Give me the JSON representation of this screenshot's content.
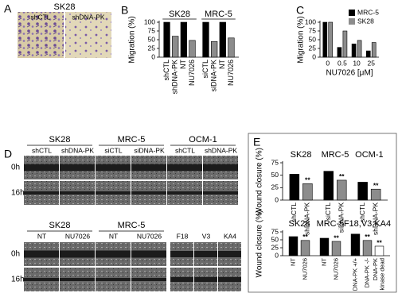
{
  "figure": {
    "A": {
      "letter": "A",
      "title": "SK28",
      "labels": [
        "shCTL",
        "shDNA-PK"
      ]
    },
    "D": {
      "letter": "D",
      "rows": [
        "0h",
        "16h"
      ],
      "top": {
        "groups": [
          {
            "label": "SK28",
            "conditions": [
              "shCTL",
              "shDNA-PK"
            ]
          },
          {
            "label": "MRC-5",
            "conditions": [
              "siCTL",
              "siDNA-PK"
            ]
          },
          {
            "label": "OCM-1",
            "conditions": [
              "shCTL",
              "shDNA-PK"
            ]
          }
        ]
      },
      "bottom": {
        "groups": [
          {
            "label": "SK28",
            "conditions": [
              "NT",
              "NU7026"
            ]
          },
          {
            "label": "MRC-5",
            "conditions": [
              "NT",
              "NU7026"
            ]
          }
        ],
        "lines": [
          "F18",
          "V3",
          "KA4"
        ]
      }
    }
  },
  "chart_data": [
    {
      "type": "bar",
      "panel": "B",
      "ylabel": "Migration (%)",
      "ylim": [
        0,
        100
      ],
      "yticks": [
        0,
        25,
        50,
        75,
        100
      ],
      "groups": [
        {
          "label": "SK28",
          "categories": [
            "shCTL",
            "shDNA-PK",
            "NT",
            "NU7026"
          ],
          "values": [
            100,
            60,
            100,
            48
          ],
          "colors": [
            "#000000",
            "#8c8c8c",
            "#000000",
            "#8c8c8c"
          ]
        },
        {
          "label": "MRC-5",
          "categories": [
            "siCTL",
            "siDNA-PK",
            "NT",
            "NU7026"
          ],
          "values": [
            100,
            45,
            100,
            55
          ],
          "colors": [
            "#000000",
            "#8c8c8c",
            "#000000",
            "#8c8c8c"
          ]
        }
      ]
    },
    {
      "type": "bar",
      "panel": "C",
      "ylabel": "Migration (%)",
      "xlabel": "NU7026 [μM]",
      "ylim": [
        0,
        100
      ],
      "yticks": [
        0,
        25,
        50,
        75,
        100
      ],
      "categories": [
        "0",
        "0.5",
        "10",
        "25"
      ],
      "series": [
        {
          "name": "MRC-5",
          "color": "#000000",
          "values": [
            100,
            28,
            38,
            18
          ]
        },
        {
          "name": "SK28",
          "color": "#8c8c8c",
          "values": [
            100,
            75,
            48,
            42
          ]
        }
      ]
    },
    {
      "type": "bar",
      "panel": "E",
      "ylabel": "Wound closure (%)",
      "ylim": [
        0,
        75
      ],
      "yticks": [
        0,
        25,
        50,
        75
      ],
      "groups": [
        {
          "label": "SK28",
          "categories": [
            "shCTL",
            "shDNA-PK"
          ],
          "values": [
            52,
            33
          ],
          "colors": [
            "#000000",
            "#8c8c8c"
          ],
          "significance": [
            null,
            "**"
          ]
        },
        {
          "label": "MRC-5",
          "categories": [
            "siCTL",
            "siDNA-PK"
          ],
          "values": [
            58,
            40
          ],
          "colors": [
            "#000000",
            "#8c8c8c"
          ],
          "significance": [
            null,
            "**"
          ]
        },
        {
          "label": "OCM-1",
          "categories": [
            "shCTL",
            "shDNA-PK"
          ],
          "values": [
            36,
            22
          ],
          "colors": [
            "#000000",
            "#8c8c8c"
          ],
          "significance": [
            null,
            "**"
          ]
        }
      ]
    },
    {
      "type": "bar",
      "ylabel": "Wound closure (%)",
      "ylim": [
        0,
        75
      ],
      "yticks": [
        0,
        25,
        50,
        75
      ],
      "groups": [
        {
          "label": "SK28",
          "categories": [
            "NT",
            "NU7026"
          ],
          "values": [
            60,
            48
          ],
          "colors": [
            "#000000",
            "#8c8c8c"
          ],
          "significance": [
            null,
            "**"
          ]
        },
        {
          "label": "MRC-5",
          "categories": [
            "NT",
            "NU7026"
          ],
          "values": [
            55,
            45
          ],
          "colors": [
            "#000000",
            "#8c8c8c"
          ],
          "significance": [
            null,
            "**"
          ]
        },
        {
          "label": "F18,V3,KA4",
          "categories": [
            "DNA-PK +/+",
            "DNA-PK -/-",
            [
              "DNA-PK",
              "kinase dead"
            ]
          ],
          "values": [
            68,
            48,
            30
          ],
          "colors": [
            "#000000",
            "#8c8c8c",
            "#ffffff"
          ],
          "significance": [
            null,
            "**",
            "**"
          ]
        }
      ]
    }
  ]
}
